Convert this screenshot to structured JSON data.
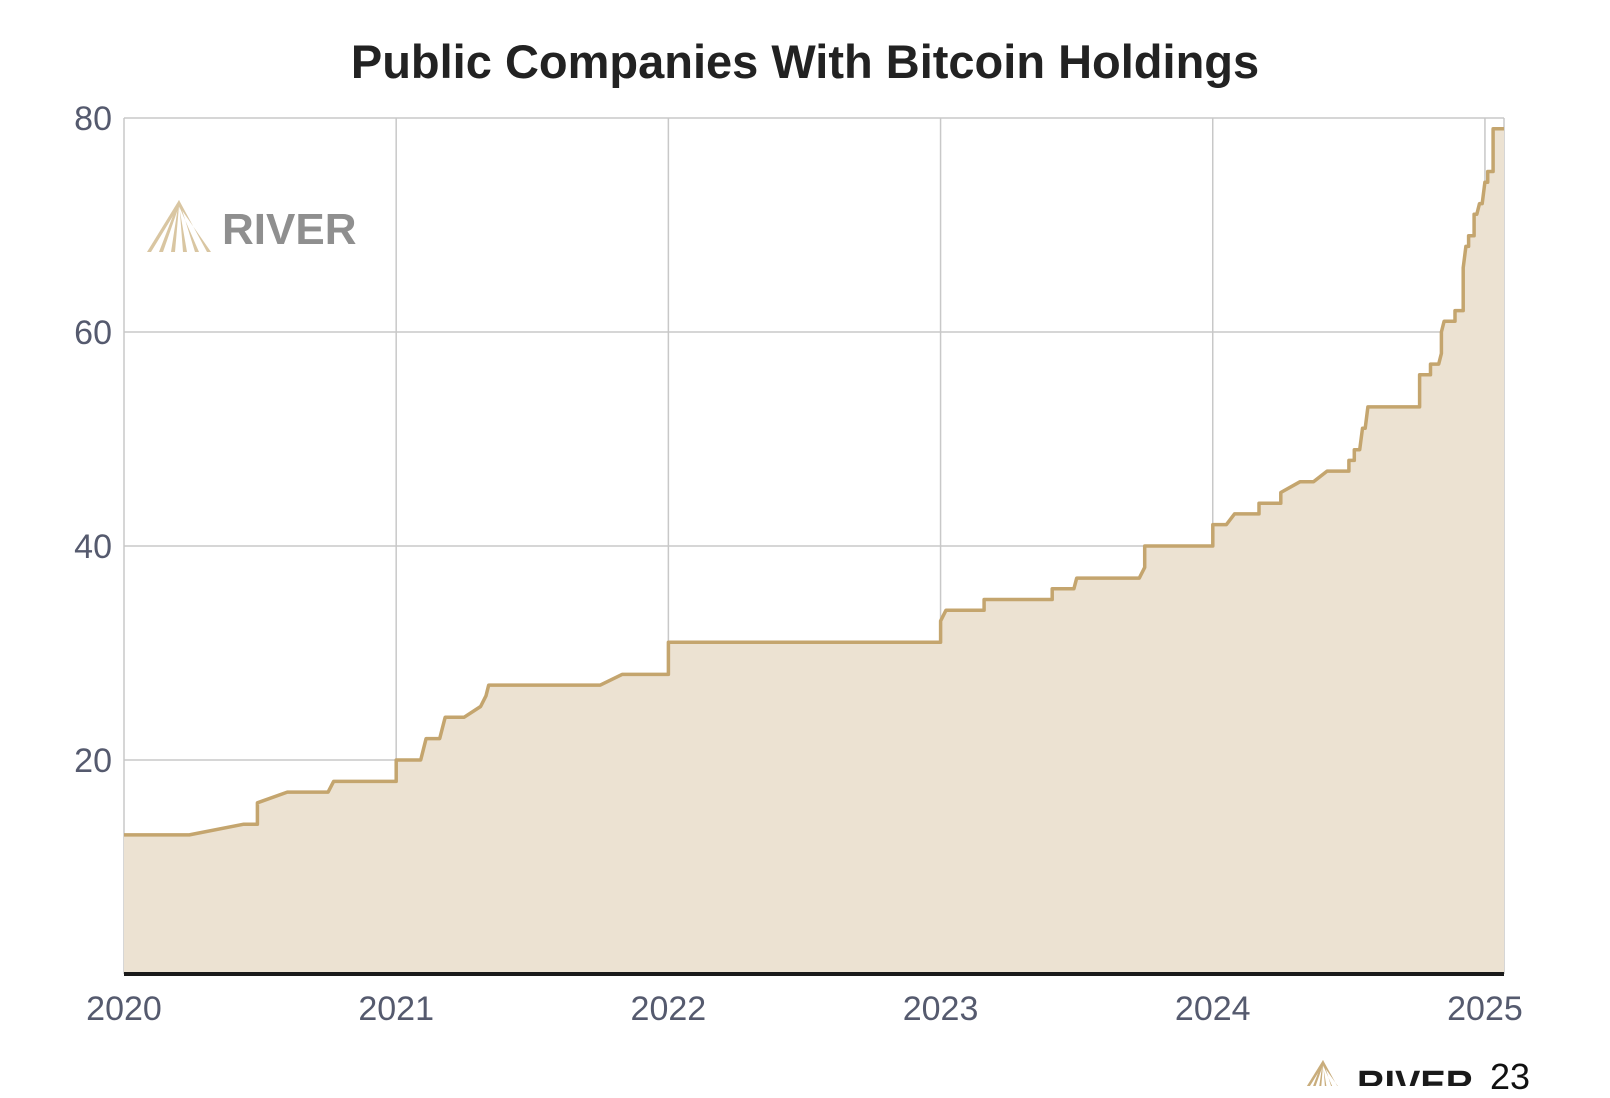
{
  "chart_data": {
    "type": "area",
    "title": "Public Companies With Bitcoin Holdings",
    "xlabel": "",
    "ylabel": "",
    "xlim": [
      2020.0,
      2025.07
    ],
    "ylim": [
      0,
      80
    ],
    "grid": true,
    "x_ticks": [
      {
        "value": 2020,
        "label": "2020"
      },
      {
        "value": 2021,
        "label": "2021"
      },
      {
        "value": 2022,
        "label": "2022"
      },
      {
        "value": 2023,
        "label": "2023"
      },
      {
        "value": 2024,
        "label": "2024"
      },
      {
        "value": 2025,
        "label": "2025"
      }
    ],
    "y_ticks": [
      {
        "value": 20,
        "label": "20"
      },
      {
        "value": 40,
        "label": "40"
      },
      {
        "value": 60,
        "label": "60"
      },
      {
        "value": 80,
        "label": "80"
      }
    ],
    "series": [
      {
        "points": [
          [
            2020.0,
            13
          ],
          [
            2020.24,
            13
          ],
          [
            2020.44,
            14
          ],
          [
            2020.49,
            14
          ],
          [
            2020.49,
            16
          ],
          [
            2020.6,
            17
          ],
          [
            2020.75,
            17
          ],
          [
            2020.77,
            18
          ],
          [
            2021.0,
            18
          ],
          [
            2021.0,
            20
          ],
          [
            2021.09,
            20
          ],
          [
            2021.1,
            21
          ],
          [
            2021.11,
            22
          ],
          [
            2021.16,
            22
          ],
          [
            2021.18,
            24
          ],
          [
            2021.25,
            24
          ],
          [
            2021.31,
            25
          ],
          [
            2021.33,
            26
          ],
          [
            2021.34,
            27
          ],
          [
            2021.75,
            27
          ],
          [
            2021.83,
            28
          ],
          [
            2022.0,
            28
          ],
          [
            2022.0,
            31
          ],
          [
            2023.0,
            31
          ],
          [
            2023.0,
            33
          ],
          [
            2023.02,
            34
          ],
          [
            2023.16,
            34
          ],
          [
            2023.16,
            35
          ],
          [
            2023.41,
            35
          ],
          [
            2023.41,
            36
          ],
          [
            2023.49,
            36
          ],
          [
            2023.5,
            37
          ],
          [
            2023.73,
            37
          ],
          [
            2023.75,
            38
          ],
          [
            2023.75,
            40
          ],
          [
            2024.0,
            40
          ],
          [
            2024.0,
            42
          ],
          [
            2024.05,
            42
          ],
          [
            2024.08,
            43
          ],
          [
            2024.17,
            43
          ],
          [
            2024.17,
            44
          ],
          [
            2024.25,
            44
          ],
          [
            2024.25,
            45
          ],
          [
            2024.32,
            46
          ],
          [
            2024.37,
            46
          ],
          [
            2024.42,
            47
          ],
          [
            2024.5,
            47
          ],
          [
            2024.5,
            48
          ],
          [
            2024.52,
            48
          ],
          [
            2024.52,
            49
          ],
          [
            2024.54,
            49
          ],
          [
            2024.55,
            51
          ],
          [
            2024.56,
            51
          ],
          [
            2024.57,
            53
          ],
          [
            2024.76,
            53
          ],
          [
            2024.76,
            56
          ],
          [
            2024.8,
            56
          ],
          [
            2024.8,
            57
          ],
          [
            2024.83,
            57
          ],
          [
            2024.84,
            58
          ],
          [
            2024.84,
            60
          ],
          [
            2024.85,
            61
          ],
          [
            2024.89,
            61
          ],
          [
            2024.89,
            62
          ],
          [
            2024.92,
            62
          ],
          [
            2024.92,
            66
          ],
          [
            2024.93,
            68
          ],
          [
            2024.94,
            68
          ],
          [
            2024.94,
            69
          ],
          [
            2024.96,
            69
          ],
          [
            2024.96,
            71
          ],
          [
            2024.97,
            71
          ],
          [
            2024.98,
            72
          ],
          [
            2024.99,
            72
          ],
          [
            2025.0,
            74
          ],
          [
            2025.01,
            74
          ],
          [
            2025.01,
            75
          ],
          [
            2025.03,
            75
          ],
          [
            2025.03,
            79
          ],
          [
            2025.07,
            79
          ]
        ]
      }
    ]
  },
  "watermark": {
    "text": "RIVER"
  },
  "footer": {
    "brand": "RIVER",
    "page_number": "23"
  },
  "colors": {
    "line": "#c4a56e",
    "fill": "#ece2d2",
    "grid": "#c8c8c8",
    "axis": "#1a1a1a",
    "tick_text": "#555a6e",
    "watermark_text": "#8f8f8f",
    "logo_gold": "#c9ad7c"
  }
}
